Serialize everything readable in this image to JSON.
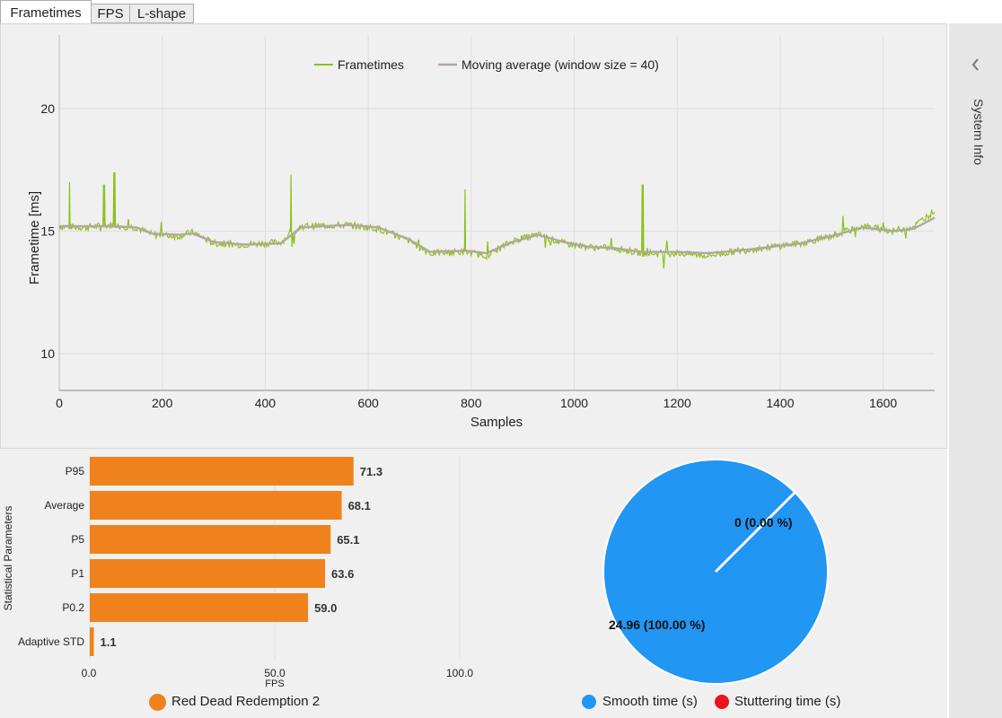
{
  "tabs": [
    {
      "label": "Frametimes",
      "active": true
    },
    {
      "label": "FPS",
      "active": false
    },
    {
      "label": "L-shape",
      "active": false
    }
  ],
  "side_panel": {
    "label": "System Info",
    "arrow_icon": "chevron-left-icon"
  },
  "frametime_chart": {
    "chart_data": {
      "type": "line",
      "xlabel": "Samples",
      "ylabel": "Frametime [ms]",
      "xlim": [
        0,
        1700
      ],
      "ylim": [
        8.5,
        23
      ],
      "x_ticks": [
        0,
        200,
        400,
        600,
        800,
        1000,
        1200,
        1400,
        1600
      ],
      "y_ticks": [
        10,
        15,
        20
      ],
      "legend": [
        "Frametimes",
        "Moving average (window size = 40)"
      ],
      "series": [
        {
          "name": "Frametimes",
          "color": "#8cc21a",
          "base": [
            [
              0,
              15.2
            ],
            [
              50,
              15.15
            ],
            [
              100,
              15.25
            ],
            [
              150,
              15.15
            ],
            [
              180,
              14.85
            ],
            [
              230,
              14.8
            ],
            [
              260,
              14.95
            ],
            [
              300,
              14.5
            ],
            [
              360,
              14.45
            ],
            [
              430,
              14.55
            ],
            [
              470,
              15.2
            ],
            [
              560,
              15.25
            ],
            [
              620,
              15.1
            ],
            [
              680,
              14.6
            ],
            [
              720,
              14.1
            ],
            [
              790,
              14.15
            ],
            [
              830,
              14.0
            ],
            [
              880,
              14.6
            ],
            [
              930,
              14.85
            ],
            [
              980,
              14.5
            ],
            [
              1030,
              14.35
            ],
            [
              1080,
              14.3
            ],
            [
              1130,
              14.1
            ],
            [
              1200,
              14.1
            ],
            [
              1260,
              14.0
            ],
            [
              1320,
              14.2
            ],
            [
              1380,
              14.35
            ],
            [
              1440,
              14.5
            ],
            [
              1500,
              14.8
            ],
            [
              1560,
              15.2
            ],
            [
              1620,
              15.0
            ],
            [
              1660,
              15.2
            ],
            [
              1700,
              15.85
            ]
          ],
          "spikes": [
            [
              20,
              17.0
            ],
            [
              87,
              16.9
            ],
            [
              107,
              17.4
            ],
            [
              450,
              17.3
            ],
            [
              788,
              16.7
            ],
            [
              1133,
              16.9
            ]
          ]
        },
        {
          "name": "Moving average (window size = 40)",
          "color": "#b3a6a0",
          "points": [
            [
              0,
              15.2
            ],
            [
              50,
              15.2
            ],
            [
              100,
              15.2
            ],
            [
              150,
              15.15
            ],
            [
              180,
              14.9
            ],
            [
              230,
              14.85
            ],
            [
              260,
              14.9
            ],
            [
              300,
              14.55
            ],
            [
              360,
              14.45
            ],
            [
              430,
              14.5
            ],
            [
              470,
              15.15
            ],
            [
              560,
              15.25
            ],
            [
              620,
              15.15
            ],
            [
              680,
              14.65
            ],
            [
              720,
              14.15
            ],
            [
              790,
              14.2
            ],
            [
              830,
              14.1
            ],
            [
              880,
              14.55
            ],
            [
              930,
              14.85
            ],
            [
              980,
              14.55
            ],
            [
              1030,
              14.35
            ],
            [
              1080,
              14.3
            ],
            [
              1130,
              14.15
            ],
            [
              1200,
              14.15
            ],
            [
              1260,
              14.1
            ],
            [
              1320,
              14.2
            ],
            [
              1380,
              14.35
            ],
            [
              1440,
              14.5
            ],
            [
              1500,
              14.8
            ],
            [
              1560,
              15.15
            ],
            [
              1620,
              15.0
            ],
            [
              1660,
              15.1
            ],
            [
              1700,
              15.55
            ]
          ]
        }
      ]
    }
  },
  "stat_chart": {
    "chart_data": {
      "type": "bar",
      "orientation": "horizontal",
      "ylabel": "Statistical Parameters",
      "xlabel": "FPS",
      "categories": [
        "P95",
        "Average",
        "P5",
        "P1",
        "P0.2",
        "Adaptive STD"
      ],
      "values": [
        71.3,
        68.1,
        65.1,
        63.6,
        59.0,
        1.1
      ],
      "value_labels": [
        "71.3",
        "68.1",
        "65.1",
        "63.6",
        "59.0",
        "1.1"
      ],
      "x_ticks": [
        "0.0",
        "50.0",
        "100.0"
      ],
      "xlim": [
        0,
        100
      ],
      "color": "#f0821e",
      "legend": [
        "Red Dead Redemption 2"
      ]
    }
  },
  "stutter_chart": {
    "chart_data": {
      "type": "pie",
      "slices": [
        {
          "name": "Smooth time (s)",
          "value": 24.96,
          "label": "24.96 (100.00 %)",
          "color": "#2196f3"
        },
        {
          "name": "Stuttering time (s)",
          "value": 0,
          "label": "0 (0.00 %)",
          "color": "#e8151b"
        }
      ],
      "legend": [
        "Smooth time (s)",
        "Stuttering time (s)"
      ]
    }
  }
}
